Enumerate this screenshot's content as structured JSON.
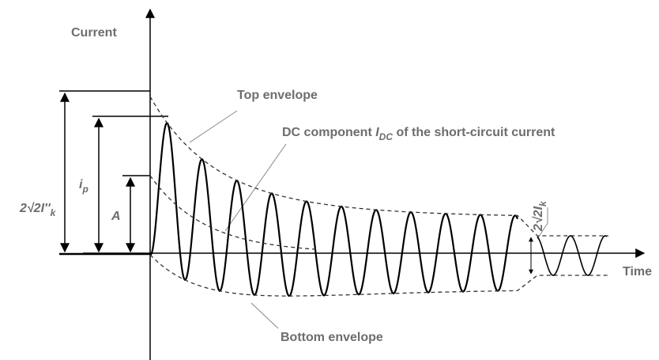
{
  "axes": {
    "y_label": "Current",
    "x_label": "Time"
  },
  "annotations": {
    "top_envelope": "Top envelope",
    "bottom_envelope": "Bottom envelope",
    "dc_component": {
      "before": "DC component ",
      "symbol": "I",
      "subscript": "DC",
      "after": " of the short-circuit current"
    },
    "initial_peak": {
      "symbol": "2√2I''",
      "subscript": "k"
    },
    "peak_current": {
      "symbol": "i",
      "subscript": "p"
    },
    "dc_initial": "A",
    "steady_state": {
      "symbol": "2√2I",
      "subscript": "k"
    }
  }
}
